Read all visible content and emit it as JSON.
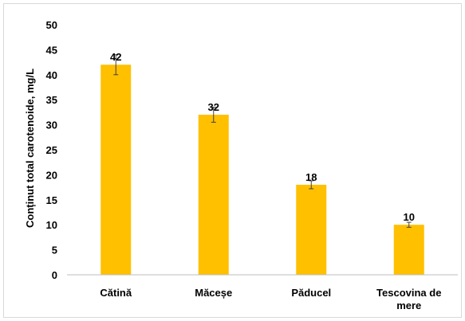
{
  "chart_data": {
    "type": "bar",
    "title": "",
    "xlabel": "",
    "ylabel": "Conținut total carotenoide, mg/L",
    "ylim": [
      0,
      50
    ],
    "yticks": [
      0,
      5,
      10,
      15,
      20,
      25,
      30,
      35,
      40,
      45,
      50
    ],
    "grid": false,
    "legend": "none",
    "categories": [
      [
        "Cătină"
      ],
      [
        "Măceșe"
      ],
      [
        "Păducel"
      ],
      [
        "Tescovina de",
        "mere"
      ]
    ],
    "values": [
      42,
      32,
      18,
      10
    ],
    "data_labels": [
      "42",
      "32",
      "18",
      "10"
    ],
    "errors": [
      2,
      1.5,
      0.8,
      0.5
    ],
    "bar_color": "#FFC000",
    "error_color": "#404040",
    "axis_color": "#bfbfbf"
  }
}
